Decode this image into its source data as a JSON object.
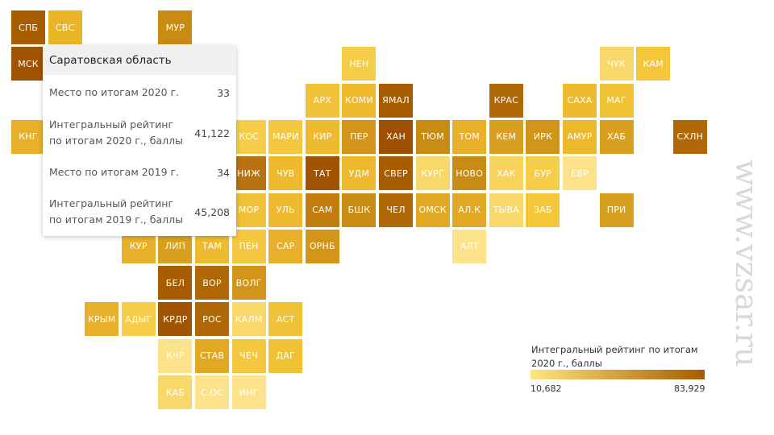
{
  "tiles": [
    {
      "label": "СПБ",
      "color": "#a85c00",
      "interactable": true
    },
    {
      "label": "СВС",
      "color": "#e9b526",
      "interactable": true
    },
    {
      "label": "МУР",
      "color": "#c88b13",
      "interactable": true
    },
    {
      "label": "МСК",
      "color": "#a05300",
      "interactable": true
    },
    {
      "label": "НЕН",
      "color": "#f5cd48",
      "interactable": true
    },
    {
      "label": "ЧУК",
      "color": "#f8d86b",
      "interactable": true
    },
    {
      "label": "КАМ",
      "color": "#f4c73b",
      "interactable": true
    },
    {
      "label": "АРХ",
      "color": "#f0c238",
      "interactable": true
    },
    {
      "label": "КОМИ",
      "color": "#eeb92d",
      "interactable": true
    },
    {
      "label": "ЯМАЛ",
      "color": "#a85c00",
      "interactable": true
    },
    {
      "label": "КРАС",
      "color": "#b06806",
      "interactable": true
    },
    {
      "label": "САХА",
      "color": "#eebb30",
      "interactable": true
    },
    {
      "label": "МАГ",
      "color": "#f1c234",
      "interactable": true
    },
    {
      "label": "КНГ",
      "color": "#e8b02a",
      "interactable": true
    },
    {
      "label": "КОС",
      "color": "#f5cd48",
      "interactable": true
    },
    {
      "label": "МАРИ",
      "color": "#f4c741",
      "interactable": true
    },
    {
      "label": "КИР",
      "color": "#eebb30",
      "interactable": true
    },
    {
      "label": "ПЕР",
      "color": "#d2951a",
      "interactable": true
    },
    {
      "label": "ХАН",
      "color": "#9c5000",
      "interactable": true
    },
    {
      "label": "ТЮМ",
      "color": "#c88b13",
      "interactable": true
    },
    {
      "label": "ТОМ",
      "color": "#e8b02a",
      "interactable": true
    },
    {
      "label": "КЕМ",
      "color": "#d9a020",
      "interactable": true
    },
    {
      "label": "ИРК",
      "color": "#d19519",
      "interactable": true
    },
    {
      "label": "АМУР",
      "color": "#ecb82c",
      "interactable": true
    },
    {
      "label": "ХАБ",
      "color": "#d9a020",
      "interactable": true
    },
    {
      "label": "СХЛН",
      "color": "#b06806",
      "interactable": true
    },
    {
      "label": "НИЖ",
      "color": "#b87310",
      "interactable": true
    },
    {
      "label": "ЧУВ",
      "color": "#eeb92d",
      "interactable": true
    },
    {
      "label": "ТАТ",
      "color": "#a05300",
      "interactable": true
    },
    {
      "label": "УДМ",
      "color": "#eeb92d",
      "interactable": true
    },
    {
      "label": "СВЕР",
      "color": "#a85c00",
      "interactable": true
    },
    {
      "label": "КУРГ",
      "color": "#f8d86b",
      "interactable": true
    },
    {
      "label": "НОВО",
      "color": "#c88b13",
      "interactable": true
    },
    {
      "label": "ХАК",
      "color": "#f7d35c",
      "interactable": true
    },
    {
      "label": "БУР",
      "color": "#f5cd48",
      "interactable": true
    },
    {
      "label": "ЕВР",
      "color": "#fbe28b",
      "interactable": true
    },
    {
      "label": "МОР",
      "color": "#f0c238",
      "interactable": true
    },
    {
      "label": "УЛЬ",
      "color": "#eeb92d",
      "interactable": true
    },
    {
      "label": "САМ",
      "color": "#c27d0e",
      "interactable": true
    },
    {
      "label": "БШК",
      "color": "#c88b13",
      "interactable": true
    },
    {
      "label": "ЧЕЛ",
      "color": "#b06806",
      "interactable": true
    },
    {
      "label": "ОМСК",
      "color": "#e0a823",
      "interactable": true
    },
    {
      "label": "АЛ.К",
      "color": "#e0a823",
      "interactable": true
    },
    {
      "label": "ТЫВА",
      "color": "#f8d86b",
      "interactable": true
    },
    {
      "label": "ЗАБ",
      "color": "#f4c73b",
      "interactable": true
    },
    {
      "label": "ПРИ",
      "color": "#d9a020",
      "interactable": true
    },
    {
      "label": "КУР",
      "color": "#e8b02a",
      "interactable": true
    },
    {
      "label": "ЛИП",
      "color": "#d9a020",
      "interactable": true
    },
    {
      "label": "ТАМ",
      "color": "#eebb30",
      "interactable": true
    },
    {
      "label": "ПЕН",
      "color": "#f4c741",
      "interactable": true
    },
    {
      "label": "САР",
      "color": "#e8b02a",
      "interactable": true
    },
    {
      "label": "ОРНБ",
      "color": "#d2951a",
      "interactable": true
    },
    {
      "label": "АЛТ",
      "color": "#fbe28b",
      "interactable": true
    },
    {
      "label": "БЕЛ",
      "color": "#a85c00",
      "interactable": true
    },
    {
      "label": "ВОР",
      "color": "#b06806",
      "interactable": true
    },
    {
      "label": "ВОЛГ",
      "color": "#d2951a",
      "interactable": true
    },
    {
      "label": "КРЫМ",
      "color": "#e8b02a",
      "interactable": true
    },
    {
      "label": "АДЫГ",
      "color": "#f5cd48",
      "interactable": true
    },
    {
      "label": "КРДР",
      "color": "#a05300",
      "interactable": true
    },
    {
      "label": "РОС",
      "color": "#b06806",
      "interactable": true
    },
    {
      "label": "КАЛМ",
      "color": "#f8d86b",
      "interactable": true
    },
    {
      "label": "АСТ",
      "color": "#f0c238",
      "interactable": true
    },
    {
      "label": "КЧР",
      "color": "#fbe28b",
      "interactable": true
    },
    {
      "label": "СТАВ",
      "color": "#e0a823",
      "interactable": true
    },
    {
      "label": "ЧЕЧ",
      "color": "#f4c741",
      "interactable": true
    },
    {
      "label": "ДАГ",
      "color": "#f1c234",
      "interactable": true
    },
    {
      "label": "КАБ",
      "color": "#f8d86b",
      "interactable": true
    },
    {
      "label": "С.ОС",
      "color": "#fbe28b",
      "interactable": true
    },
    {
      "label": "ИНГ",
      "color": "#fbe28b",
      "interactable": true
    }
  ],
  "tooltip": {
    "region": "Саратовская область",
    "rows": [
      {
        "label": "Место по итогам 2020 г.",
        "value": "33"
      },
      {
        "label": "Интегральный рейтинг по итогам 2020 г., баллы",
        "value": "41,122"
      },
      {
        "label": "Место по итогам 2019 г.",
        "value": "34"
      },
      {
        "label": "Интегральный рейтинг по итогам 2019 г., баллы",
        "value": "45,208"
      }
    ]
  },
  "legend": {
    "title": "Интегральный рейтинг по итогам 2020 г., баллы",
    "min": "10,682",
    "max": "83,929",
    "color_low": "#ffe680",
    "color_high": "#a35d00"
  },
  "watermark": "www.vzsar.ru"
}
